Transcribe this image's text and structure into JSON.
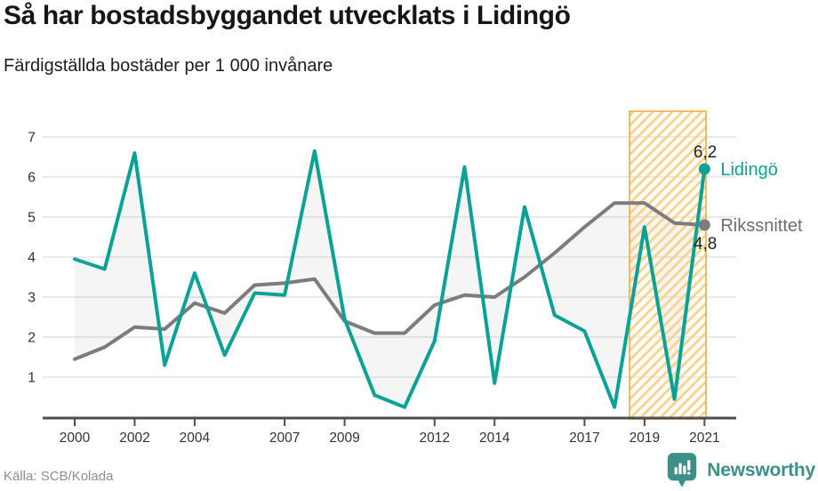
{
  "header": {
    "title": "Så har bostadsbyggandet utvecklats i Lidingö",
    "subtitle": "Färdigställda bostäder per 1 000 invånare"
  },
  "footer": {
    "source": "Källa: SCB/Kolada",
    "brand": "Newsworthy"
  },
  "colors": {
    "lidingo": "#0ba296",
    "rikssnittet": "#7c7c7c",
    "name_label_gray": "#6e6e6e",
    "value_label": "#222222",
    "grid": "#e3e3e3",
    "axis": "#4d4d4d",
    "tick_label": "#333333",
    "band_border": "#f3ab42",
    "band_hatch": "#fbd28a",
    "fill_between": "rgba(120,120,120,0.07)",
    "brand_teal": "#3d9089"
  },
  "chart_data": {
    "type": "line",
    "x": [
      2000,
      2001,
      2002,
      2003,
      2004,
      2005,
      2006,
      2007,
      2008,
      2009,
      2010,
      2011,
      2012,
      2013,
      2014,
      2015,
      2016,
      2017,
      2018,
      2019,
      2020,
      2021
    ],
    "series": [
      {
        "name": "Lidingö",
        "color_key": "lidingo",
        "end_label": "6,2",
        "values": [
          3.95,
          3.7,
          6.6,
          1.3,
          3.6,
          1.55,
          3.1,
          3.05,
          6.65,
          2.45,
          0.55,
          0.25,
          1.9,
          6.25,
          0.85,
          5.25,
          2.55,
          2.15,
          0.25,
          4.75,
          0.45,
          6.2
        ]
      },
      {
        "name": "Rikssnittet",
        "color_key": "rikssnittet",
        "end_label": "4,8",
        "values": [
          1.45,
          1.75,
          2.25,
          2.2,
          2.85,
          2.6,
          3.3,
          3.35,
          3.45,
          2.4,
          2.1,
          2.1,
          2.8,
          3.05,
          3.0,
          3.5,
          4.1,
          4.75,
          5.35,
          5.35,
          4.85,
          4.8
        ]
      }
    ],
    "xticks": [
      2000,
      2002,
      2004,
      2007,
      2009,
      2012,
      2014,
      2017,
      2019,
      2021
    ],
    "yticks": [
      1,
      2,
      3,
      4,
      5,
      6,
      7
    ],
    "ylim": [
      0.2,
      7.65
    ],
    "grid": true,
    "legend_position": "end-of-line",
    "fill_between": true,
    "highlight_band": {
      "from": 2018.5,
      "to": 2021.05,
      "style": "hatched"
    }
  }
}
